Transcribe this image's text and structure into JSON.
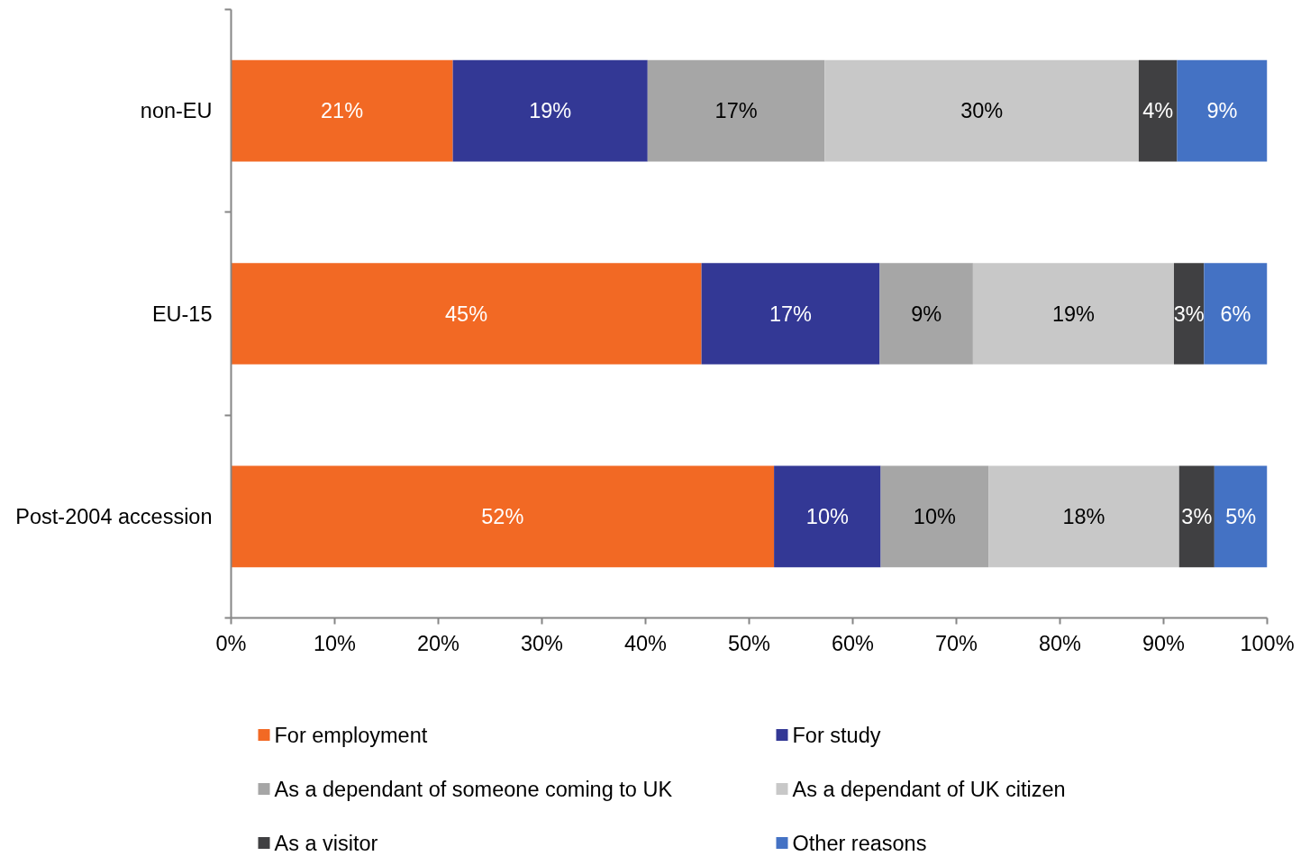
{
  "chart_data": {
    "type": "bar",
    "orientation": "horizontal",
    "stacked": true,
    "legend": "bottom",
    "categories": [
      "non-EU",
      "EU-15",
      "Post-2004 accession"
    ],
    "xlim": [
      0,
      100
    ],
    "xticks": [
      {
        "value": 0,
        "label": "0%"
      },
      {
        "value": 10,
        "label": "10%"
      },
      {
        "value": 20,
        "label": "20%"
      },
      {
        "value": 30,
        "label": "30%"
      },
      {
        "value": 40,
        "label": "40%"
      },
      {
        "value": 50,
        "label": "50%"
      },
      {
        "value": 60,
        "label": "60%"
      },
      {
        "value": 70,
        "label": "70%"
      },
      {
        "value": 80,
        "label": "80%"
      },
      {
        "value": 90,
        "label": "90%"
      },
      {
        "value": 100,
        "label": "100%"
      }
    ],
    "series": [
      {
        "name": "For employment",
        "color": "#f26924",
        "values": [
          21.4,
          45.4,
          52.4
        ],
        "value_labels": [
          "21%",
          "45%",
          "52%"
        ]
      },
      {
        "name": "For study",
        "color": "#333895",
        "values": [
          18.8,
          17.2,
          10.3
        ],
        "value_labels": [
          "19%",
          "17%",
          "10%"
        ]
      },
      {
        "name": "As a dependant of someone coming to UK",
        "color": "#a6a6a6",
        "values": [
          17.1,
          9.0,
          10.4
        ],
        "value_labels": [
          "17%",
          "9%",
          "10%"
        ]
      },
      {
        "name": "As a dependant of UK citizen",
        "color": "#c8c8c8",
        "values": [
          30.3,
          19.4,
          18.4
        ],
        "value_labels": [
          "30%",
          "19%",
          "18%"
        ]
      },
      {
        "name": "As a visitor",
        "color": "#404042",
        "values": [
          3.7,
          2.9,
          3.4
        ],
        "value_labels": [
          "4%",
          "3%",
          "3%"
        ]
      },
      {
        "name": "Other reasons",
        "color": "#4472c4",
        "values": [
          8.7,
          6.1,
          5.1
        ],
        "value_labels": [
          "9%",
          "6%",
          "5%"
        ]
      }
    ]
  }
}
